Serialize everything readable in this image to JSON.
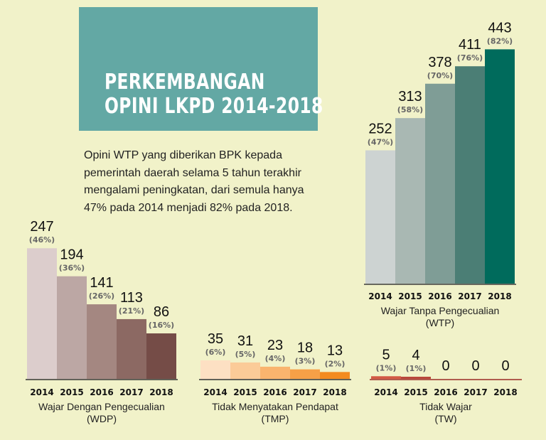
{
  "title": {
    "line1": "PERKEMBANGAN",
    "line2": "OPINI LKPD 2014-2018"
  },
  "intro": [
    "Opini WTP yang diberikan BPK kepada",
    "pemerintah daerah selama 5 tahun terakhir",
    "mengalami peningkatan, dari semula hanya",
    "47% pada 2014 menjadi 82% pada 2018."
  ],
  "chart_data": [
    {
      "type": "bar",
      "categories": [
        "2014",
        "2015",
        "2016",
        "2017",
        "2018"
      ],
      "values": [
        252,
        313,
        378,
        411,
        443
      ],
      "labels": [
        "252",
        "313",
        "378",
        "411",
        "443"
      ],
      "percent_labels": [
        "(47%)",
        "(58%)",
        "(70%)",
        "(76%)",
        "(82%)"
      ],
      "caption": [
        "Wajar Tanpa Pengecualian",
        "(WTP)"
      ],
      "colors": [
        "#cdd3d2",
        "#a9b8b3",
        "#7f9d96",
        "#4b7e75",
        "#006b5c"
      ]
    },
    {
      "type": "bar",
      "categories": [
        "2014",
        "2015",
        "2016",
        "2017",
        "2018"
      ],
      "values": [
        247,
        194,
        141,
        113,
        86
      ],
      "labels": [
        "247",
        "194",
        "141",
        "113",
        "86"
      ],
      "percent_labels": [
        "(46%)",
        "(36%)",
        "(26%)",
        "(21%)",
        "(16%)"
      ],
      "caption": [
        "Wajar Dengan Pengecualian",
        "(WDP)"
      ],
      "colors": [
        "#dccdcc",
        "#bca7a4",
        "#a48781",
        "#8c6963",
        "#754c47"
      ]
    },
    {
      "type": "bar",
      "categories": [
        "2014",
        "2015",
        "2016",
        "2017",
        "2018"
      ],
      "values": [
        35,
        31,
        23,
        18,
        13
      ],
      "labels": [
        "35",
        "31",
        "23",
        "18",
        "13"
      ],
      "percent_labels": [
        "(6%)",
        "(5%)",
        "(4%)",
        "(3%)",
        "(2%)"
      ],
      "caption": [
        "Tidak Menyatakan Pendapat",
        "(TMP)"
      ],
      "colors": [
        "#fde0c3",
        "#fbcb98",
        "#f9b46e",
        "#f6a047",
        "#f38b20"
      ]
    },
    {
      "type": "bar",
      "categories": [
        "2014",
        "2015",
        "2016",
        "2017",
        "2018"
      ],
      "values": [
        5,
        4,
        0,
        0,
        0
      ],
      "labels": [
        "5",
        "4",
        "0",
        "0",
        "0"
      ],
      "percent_labels": [
        "(1%)",
        "(1%)",
        "",
        "",
        ""
      ],
      "caption": [
        "Tidak Wajar",
        "(TW)"
      ],
      "colors": [
        "#d35a45",
        "#b8473b",
        "#b8473b",
        "#b8473b",
        "#b8473b"
      ]
    }
  ]
}
